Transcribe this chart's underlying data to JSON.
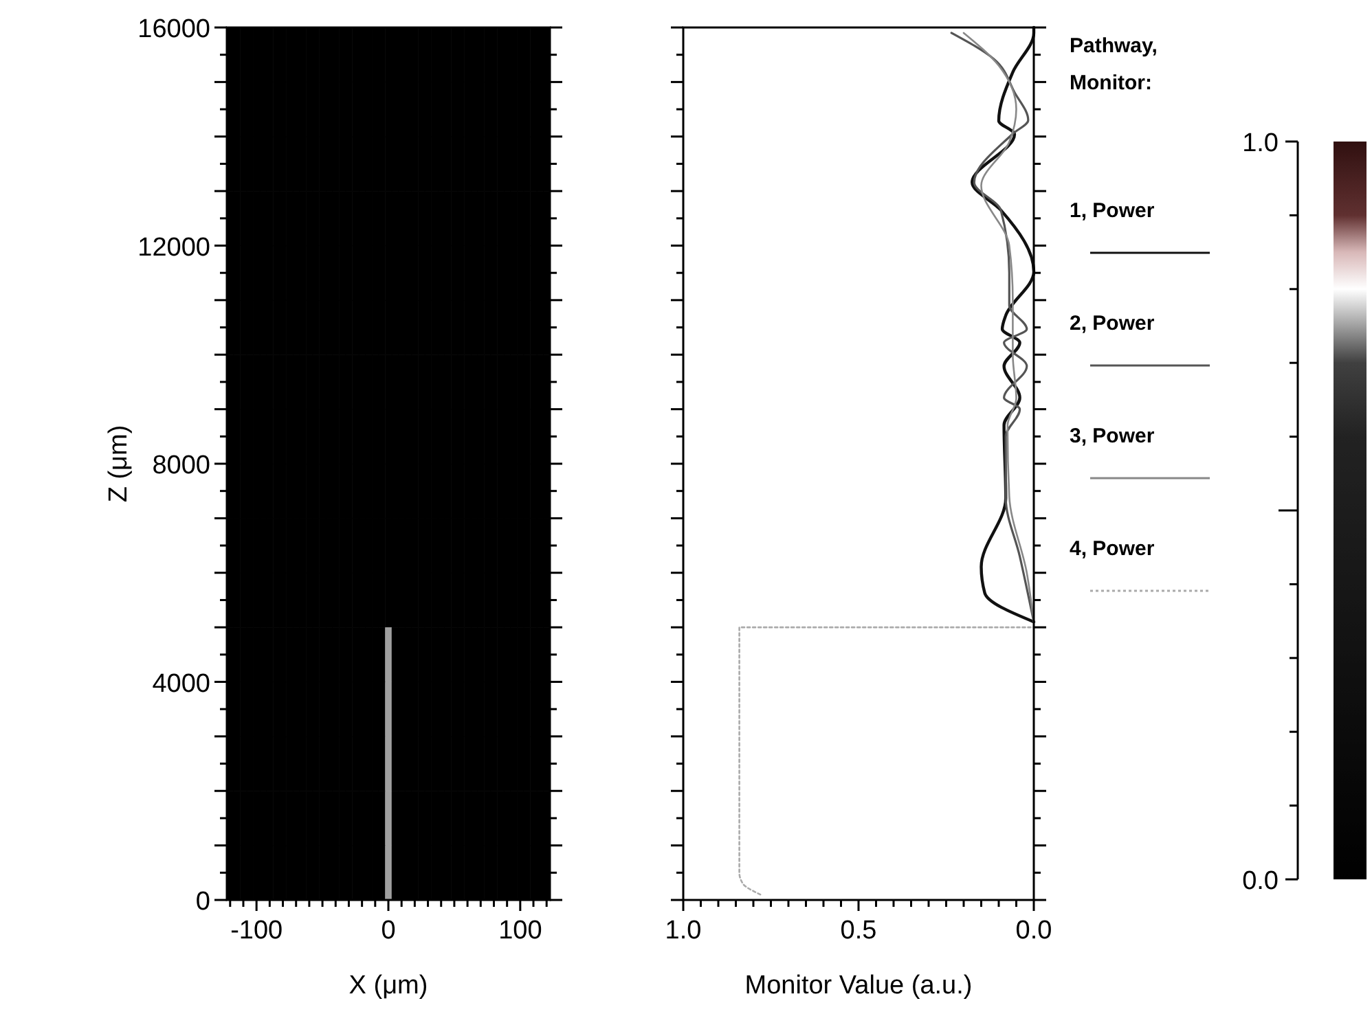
{
  "chart_data": [
    {
      "type": "heatmap",
      "xlabel": "X (μm)",
      "ylabel": "Z (μm)",
      "xlim": [
        -122.5,
        122.5
      ],
      "ylim": [
        0,
        16000
      ],
      "xticks": [
        {
          "value": -120,
          "label": null
        },
        {
          "value": -110,
          "label": null
        },
        -100,
        {
          "value": -90,
          "label": null
        },
        {
          "value": -80,
          "label": null
        },
        {
          "value": -70,
          "label": null
        },
        {
          "value": -60,
          "label": null
        },
        {
          "value": -50,
          "label": null
        },
        {
          "value": -40,
          "label": null
        },
        {
          "value": -30,
          "label": null
        },
        {
          "value": -20,
          "label": null
        },
        {
          "value": -10,
          "label": null
        },
        0,
        {
          "value": 10,
          "label": null
        },
        {
          "value": 20,
          "label": null
        },
        {
          "value": 30,
          "label": null
        },
        {
          "value": 40,
          "label": null
        },
        {
          "value": 50,
          "label": null
        },
        {
          "value": 60,
          "label": null
        },
        {
          "value": 70,
          "label": null
        },
        {
          "value": 80,
          "label": null
        },
        {
          "value": 90,
          "label": null
        },
        100,
        {
          "value": 110,
          "label": null
        },
        {
          "value": 120,
          "label": null
        }
      ],
      "yticks": [
        0,
        {
          "value": 500,
          "label": null
        },
        {
          "value": 1000,
          "label": null
        },
        {
          "value": 1500,
          "label": null
        },
        {
          "value": 2000,
          "label": null
        },
        {
          "value": 2500,
          "label": null
        },
        {
          "value": 3000,
          "label": null
        },
        {
          "value": 3500,
          "label": null
        },
        4000,
        {
          "value": 4500,
          "label": null
        },
        {
          "value": 5000,
          "label": null
        },
        {
          "value": 5500,
          "label": null
        },
        {
          "value": 6000,
          "label": null
        },
        {
          "value": 6500,
          "label": null
        },
        {
          "value": 7000,
          "label": null
        },
        {
          "value": 7500,
          "label": null
        },
        8000,
        {
          "value": 8500,
          "label": null
        },
        {
          "value": 9000,
          "label": null
        },
        {
          "value": 9500,
          "label": null
        },
        {
          "value": 10000,
          "label": null
        },
        {
          "value": 10500,
          "label": null
        },
        {
          "value": 11000,
          "label": null
        },
        {
          "value": 11500,
          "label": null
        },
        12000,
        {
          "value": 12500,
          "label": null
        },
        {
          "value": 13000,
          "label": null
        },
        {
          "value": 13500,
          "label": null
        },
        {
          "value": 14000,
          "label": null
        },
        {
          "value": 14500,
          "label": null
        },
        {
          "value": 15000,
          "label": null
        },
        {
          "value": 15500,
          "label": null
        },
        16000
      ],
      "clim": [
        0,
        1
      ],
      "cticks": [
        {
          "value": 0,
          "label": "0.0"
        },
        {
          "value": 1,
          "label": "1.0"
        }
      ],
      "cells": [
        [
          0,
          0,
          0,
          0,
          0,
          0,
          0,
          0,
          0,
          0,
          0,
          0,
          0,
          0,
          0,
          0,
          0,
          0,
          0,
          0,
          0,
          0,
          0,
          0,
          0,
          0,
          0,
          0,
          0,
          0,
          0,
          0,
          0,
          0,
          0,
          0,
          0,
          0,
          0,
          0,
          0,
          0,
          0,
          0,
          0,
          0,
          0,
          0,
          0
        ],
        [
          0,
          0,
          0,
          0,
          0,
          0,
          0,
          0,
          0,
          0,
          0,
          0,
          0,
          0,
          0,
          0,
          0,
          0,
          0,
          0,
          0,
          0,
          0,
          0,
          0,
          0,
          0,
          0,
          0,
          0,
          0,
          0,
          0,
          0,
          0,
          0,
          0,
          0,
          0,
          0,
          0,
          0,
          0,
          0,
          0,
          0,
          0,
          0,
          0
        ],
        [
          0,
          0,
          0,
          0,
          0,
          0,
          0,
          0,
          0,
          0,
          0,
          0,
          0,
          0,
          0,
          0,
          0,
          0,
          0,
          0,
          0,
          0,
          0,
          0,
          0,
          0,
          0,
          0,
          0,
          0,
          0,
          0,
          0,
          0,
          0,
          0,
          0,
          0,
          0,
          0,
          0,
          0,
          0,
          0,
          0,
          0,
          0,
          0,
          0
        ],
        [
          0,
          0,
          0,
          0,
          0,
          0,
          0,
          0,
          0,
          0,
          0,
          0,
          0,
          0,
          0,
          0,
          0,
          0,
          0,
          0,
          0,
          0,
          0,
          0,
          0,
          0,
          0,
          0,
          0,
          0,
          0,
          0,
          0,
          0,
          0,
          0,
          0,
          0,
          0,
          0,
          0,
          0,
          0,
          0,
          0,
          0,
          0,
          0,
          0
        ],
        [
          0,
          0,
          0,
          0,
          0,
          0,
          0,
          0,
          0,
          0,
          0,
          0,
          0,
          0,
          0,
          0,
          0,
          0,
          0,
          0,
          0,
          0,
          0,
          0,
          0,
          0,
          0,
          0,
          0,
          0,
          0,
          0,
          0,
          0,
          0,
          0,
          0,
          0,
          0,
          0,
          0,
          0,
          0,
          0,
          0,
          0,
          0,
          0,
          0
        ],
        [
          0,
          0,
          0,
          0,
          0,
          0,
          0,
          0,
          0,
          0,
          0,
          0,
          0,
          0,
          0,
          0,
          0,
          0,
          0,
          0,
          0,
          0,
          0,
          0,
          0,
          0,
          0,
          0,
          0,
          0,
          0,
          0,
          0,
          0,
          0,
          0,
          0,
          0,
          0,
          0,
          0,
          0,
          0,
          0,
          0,
          0,
          0,
          0,
          0
        ],
        [
          0,
          0,
          0,
          0,
          0,
          0,
          0,
          0,
          0,
          0,
          0,
          0,
          0,
          0,
          0,
          0,
          0,
          0,
          0,
          0,
          0,
          0,
          0,
          0,
          0,
          0,
          0,
          0,
          0,
          0,
          0,
          0,
          0,
          0,
          0,
          0,
          0,
          0,
          0,
          0,
          0,
          0,
          0,
          0,
          0,
          0,
          0,
          0,
          0
        ],
        [
          0,
          0,
          0,
          0,
          0,
          0,
          0,
          0,
          0,
          0,
          0,
          0,
          0,
          0,
          0,
          0,
          0,
          0,
          0,
          0,
          0,
          0,
          0,
          0,
          0,
          0,
          0,
          0,
          0,
          0,
          0,
          0,
          0,
          0,
          0,
          0,
          0,
          0,
          0,
          0,
          0,
          0,
          0,
          0,
          0,
          0,
          0,
          0,
          0
        ],
        [
          0,
          0,
          0,
          0,
          0,
          0,
          0,
          0,
          0,
          0,
          0,
          0,
          0,
          0,
          0,
          0,
          0,
          0,
          0,
          0,
          0,
          0,
          0,
          0,
          0,
          0,
          0,
          0,
          0,
          0,
          0,
          0,
          0,
          0,
          0,
          0,
          0,
          0,
          0,
          0,
          0,
          0,
          0,
          0,
          0,
          0,
          0,
          0,
          0
        ],
        [
          0,
          0,
          0,
          0,
          0,
          0,
          0,
          0,
          0,
          0,
          0,
          0,
          0,
          0,
          0,
          0,
          0,
          0,
          0,
          0,
          0,
          0,
          0,
          0,
          0,
          0,
          0,
          0,
          0,
          0,
          0,
          0,
          0,
          0,
          0,
          0,
          0,
          0,
          0,
          0,
          0,
          0,
          0,
          0,
          0,
          0,
          0,
          0,
          0
        ],
        [
          0,
          0,
          0,
          0,
          0,
          0,
          0,
          0,
          0,
          0,
          0,
          0,
          0,
          0,
          0,
          0,
          0,
          0,
          0,
          0,
          0,
          0,
          0,
          0,
          0,
          0,
          0,
          0,
          0,
          0,
          0,
          0,
          0,
          0,
          0,
          0,
          0,
          0,
          0,
          0,
          0,
          0,
          0,
          0,
          0,
          0,
          0,
          0,
          0
        ],
        [
          0,
          0,
          0,
          0,
          0,
          0,
          0,
          0,
          0,
          0,
          0,
          0,
          0,
          0,
          0,
          0,
          0,
          0,
          0,
          0,
          0,
          0,
          0,
          0,
          0.75,
          0,
          0,
          0,
          0,
          0,
          0,
          0,
          0,
          0,
          0,
          0,
          0,
          0,
          0,
          0,
          0,
          0,
          0,
          0,
          0,
          0,
          0,
          0,
          0
        ],
        [
          0,
          0,
          0,
          0,
          0,
          0,
          0,
          0,
          0,
          0,
          0,
          0,
          0,
          0,
          0,
          0,
          0,
          0,
          0,
          0,
          0,
          0,
          0,
          0,
          0.75,
          0,
          0,
          0,
          0,
          0,
          0,
          0,
          0,
          0,
          0,
          0,
          0,
          0,
          0,
          0,
          0,
          0,
          0,
          0,
          0,
          0,
          0,
          0,
          0
        ],
        [
          0,
          0,
          0,
          0,
          0,
          0,
          0,
          0,
          0,
          0,
          0,
          0,
          0,
          0,
          0,
          0,
          0,
          0,
          0,
          0,
          0,
          0,
          0,
          0,
          0.75,
          0,
          0,
          0,
          0,
          0,
          0,
          0,
          0,
          0,
          0,
          0,
          0,
          0,
          0,
          0,
          0,
          0,
          0,
          0,
          0,
          0,
          0,
          0,
          0
        ],
        [
          0,
          0,
          0,
          0,
          0,
          0,
          0,
          0,
          0,
          0,
          0,
          0,
          0,
          0,
          0,
          0,
          0,
          0,
          0,
          0,
          0,
          0,
          0,
          0,
          0.75,
          0,
          0,
          0,
          0,
          0,
          0,
          0,
          0,
          0,
          0,
          0,
          0,
          0,
          0,
          0,
          0,
          0,
          0,
          0,
          0,
          0,
          0,
          0,
          0
        ],
        [
          0,
          0,
          0,
          0,
          0,
          0,
          0,
          0,
          0,
          0,
          0,
          0,
          0,
          0,
          0,
          0,
          0,
          0,
          0,
          0,
          0,
          0,
          0,
          0,
          0.75,
          0,
          0,
          0,
          0,
          0,
          0,
          0,
          0,
          0,
          0,
          0,
          0,
          0,
          0,
          0,
          0,
          0,
          0,
          0,
          0,
          0,
          0,
          0,
          0
        ]
      ]
    },
    {
      "type": "line",
      "xlabel": "Monitor Value (a.u.)",
      "legend_title": "Pathway, Monitor:",
      "legend": "right",
      "tick_labels": "x",
      "xlim": [
        1,
        0
      ],
      "ylim": [
        0,
        16000
      ],
      "xticks": [
        {
          "value": 1,
          "label": "1.0"
        },
        {
          "value": 0.95,
          "label": null
        },
        {
          "value": 0.9,
          "label": null
        },
        {
          "value": 0.85,
          "label": null
        },
        {
          "value": 0.8,
          "label": null
        },
        {
          "value": 0.75,
          "label": null
        },
        {
          "value": 0.7,
          "label": null
        },
        {
          "value": 0.65,
          "label": null
        },
        {
          "value": 0.6,
          "label": null
        },
        {
          "value": 0.55,
          "label": null
        },
        0.5,
        {
          "value": 0.45,
          "label": null
        },
        {
          "value": 0.4,
          "label": null
        },
        {
          "value": 0.35,
          "label": null
        },
        {
          "value": 0.3,
          "label": null
        },
        {
          "value": 0.25,
          "label": null
        },
        {
          "value": 0.2,
          "label": null
        },
        {
          "value": 0.15,
          "label": null
        },
        {
          "value": 0.1,
          "label": null
        },
        {
          "value": 0.05,
          "label": null
        },
        {
          "value": 0,
          "label": "0.0"
        }
      ],
      "yticks": [
        {
          "value": 0,
          "label": null
        },
        {
          "value": 500,
          "label": null
        },
        {
          "value": 1000,
          "label": null
        },
        {
          "value": 1500,
          "label": null
        },
        {
          "value": 2000,
          "label": null
        },
        {
          "value": 2500,
          "label": null
        },
        {
          "value": 3000,
          "label": null
        },
        {
          "value": 3500,
          "label": null
        },
        {
          "value": 4000,
          "label": null
        },
        {
          "value": 4500,
          "label": null
        },
        {
          "value": 5000,
          "label": null
        },
        {
          "value": 5500,
          "label": null
        },
        {
          "value": 6000,
          "label": null
        },
        {
          "value": 6500,
          "label": null
        },
        {
          "value": 7000,
          "label": null
        },
        {
          "value": 7500,
          "label": null
        },
        {
          "value": 8000,
          "label": null
        },
        {
          "value": 8500,
          "label": null
        },
        {
          "value": 9000,
          "label": null
        },
        {
          "value": 9500,
          "label": null
        },
        {
          "value": 10000,
          "label": null
        },
        {
          "value": 10500,
          "label": null
        },
        {
          "value": 11000,
          "label": null
        },
        {
          "value": 11500,
          "label": null
        },
        {
          "value": 12000,
          "label": null
        },
        {
          "value": 12500,
          "label": null
        },
        {
          "value": 13000,
          "label": null
        },
        {
          "value": 13500,
          "label": null
        },
        {
          "value": 14000,
          "label": null
        },
        {
          "value": 14500,
          "label": null
        },
        {
          "value": 15000,
          "label": null
        },
        {
          "value": 15500,
          "label": null
        },
        {
          "value": 16000,
          "label": null
        }
      ],
      "series": [
        {
          "name": "1, Power",
          "color": "#111111",
          "line_style": "solid",
          "x": [
            0,
            0.14,
            0.15,
            0.08,
            0.085,
            0.04,
            0.085,
            0.04,
            0.09,
            0.08,
            0,
            0.094,
            0.176,
            0.055,
            0.1,
            0.06,
            0,
            0
          ],
          "values": [
            5100,
            5630,
            6110,
            7370,
            8710,
            9210,
            9790,
            10220,
            10470,
            10720,
            11520,
            12650,
            13160,
            14040,
            14290,
            15180,
            15900,
            16000
          ]
        },
        {
          "name": "2, Power",
          "color": "#555555",
          "line_style": "solid",
          "x": [
            0,
            0.04,
            0.08,
            0.08,
            0.04,
            0.085,
            0.02,
            0.085,
            0.02,
            0.07,
            0.07,
            0.094,
            0.17,
            0.06,
            0.016,
            0.055,
            0.114,
            0.235
          ],
          "values": [
            5100,
            6300,
            7370,
            8500,
            9000,
            9210,
            9790,
            10220,
            10470,
            10900,
            11500,
            12650,
            13160,
            14050,
            14300,
            14810,
            15420,
            15900
          ]
        },
        {
          "name": "3, Power",
          "color": "#888888",
          "line_style": "solid",
          "x": [
            0,
            0.02,
            0.07,
            0.075,
            0.05,
            0.06,
            0.06,
            0.07,
            0.15,
            0.07,
            0.05,
            0.1,
            0.2
          ],
          "values": [
            5100,
            6000,
            7400,
            8700,
            9200,
            10000,
            11000,
            12000,
            13100,
            13900,
            14500,
            15300,
            15900
          ]
        },
        {
          "name": "4, Power",
          "color": "#aaaaaa",
          "line_style": "dotted",
          "x": [
            0.78,
            0.83,
            0.84,
            0.84,
            0
          ],
          "values": [
            100,
            300,
            500,
            5000,
            5000
          ]
        }
      ]
    }
  ]
}
